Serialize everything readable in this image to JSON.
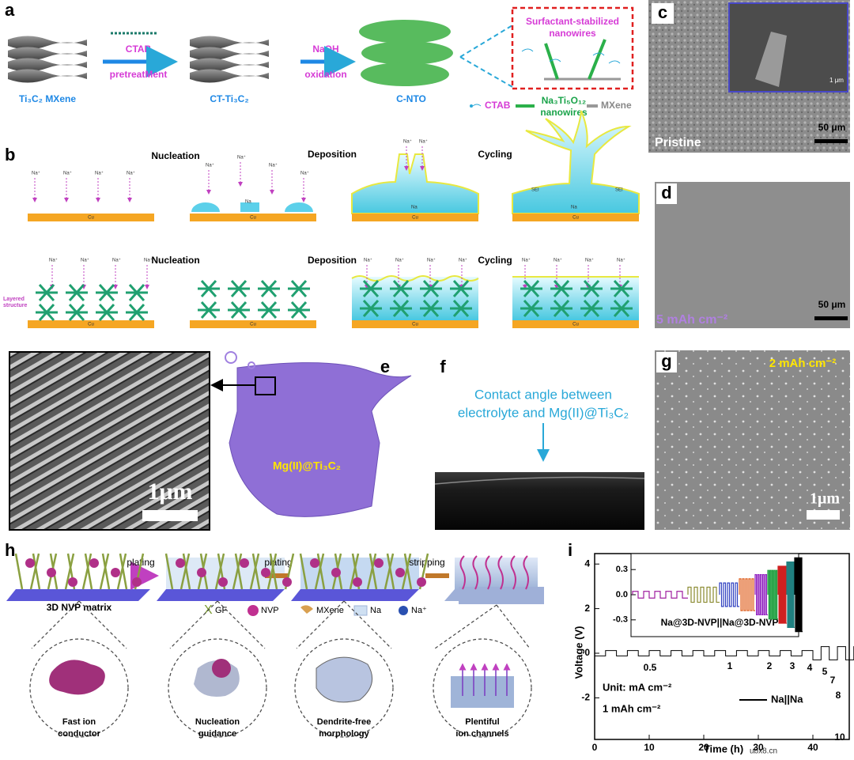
{
  "a": {
    "label": "a",
    "mxene": "Ti₃C₂ MXene",
    "ctab": "CTAB",
    "pretreatment": "pretreatMent",
    "ct_ti3c2": "CT-Ti₃C₂",
    "naoh": "NaOH",
    "oxidation": "oxidation",
    "c_nto": "C-NTO",
    "callout": [
      "Surfactant-stabilized",
      "nanowires"
    ],
    "legend": {
      "ctab": "CTAB",
      "nanowires": [
        "Na₃Ti₅O₁₂",
        "nanowires"
      ],
      "mxene": "MXene"
    }
  },
  "b": {
    "label": "b",
    "steps": [
      "Nucleation",
      "Deposition",
      "Cycling"
    ],
    "na_ion": "Na⁺",
    "cu": "Cu",
    "na": "Na",
    "sei": "SEI",
    "layered": [
      "Layered",
      "structure"
    ]
  },
  "c": {
    "label": "c",
    "caption": "Pristine",
    "scale": "50 μm",
    "inset_scale": "1 μm"
  },
  "d": {
    "label": "d",
    "caption": "5 mAh cm⁻²",
    "scale": "50 μm"
  },
  "e": {
    "label": "e",
    "scale": "1μm",
    "material": "Mg(II)@Ti₃C₂"
  },
  "f": {
    "label": "f",
    "caption": [
      "Contact angle between",
      "electrolyte and Mg(II)@Ti₃C₂"
    ]
  },
  "g": {
    "label": "g",
    "caption": "2 mAh cm⁻²",
    "scale": "1μm"
  },
  "h": {
    "label": "h",
    "arrows": [
      "plating",
      "plating",
      "stripping"
    ],
    "matrix": "3D NVP matrix",
    "legend": [
      "GF",
      "NVP",
      "MXene",
      "Na",
      "Na⁺"
    ],
    "stages": [
      [
        "Fast ion",
        "conductor"
      ],
      [
        "Nucleation",
        "guidance"
      ],
      [
        "Dendrite-free",
        "morphology"
      ],
      [
        "Plentiful",
        "ion channels"
      ]
    ]
  },
  "i": {
    "label": "i",
    "y_label": "Voltage (V)",
    "x_label": "Time (h)",
    "yticks": [
      4,
      2,
      0,
      -2
    ],
    "xticks": [
      0,
      10,
      20,
      30,
      40
    ],
    "inset_yticks": [
      0.3,
      {
        "value": 0,
        "label": "0.0"
      },
      -0.3
    ],
    "inset_label": "Na@3D-NVP||Na@3D-NVP",
    "unit": "Unit: mA cm⁻²",
    "capacity": "1 mAh cm⁻²",
    "legend": "Na||Na",
    "rates": [
      0.5,
      1,
      2,
      3,
      4,
      5,
      7,
      8,
      10
    ]
  },
  "watermark": "ubx8.cn"
}
